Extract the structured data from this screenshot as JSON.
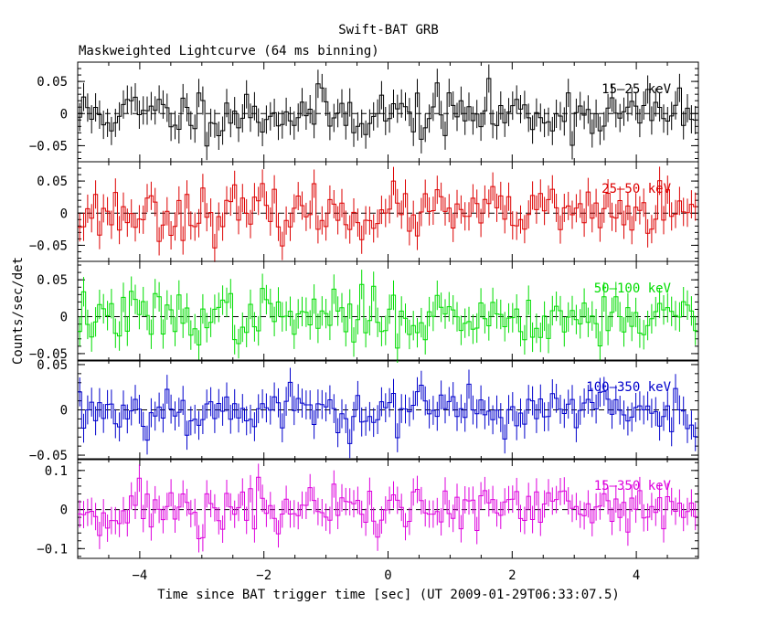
{
  "chart_data": {
    "type": "line",
    "title": "Swift-BAT GRB",
    "subtitle": "Maskweighted Lightcurve (64 ms binning)",
    "xlabel": "Time since BAT trigger time [sec] (UT 2009-01-29T06:33:07.5)",
    "ylabel": "Counts/sec/det",
    "xlim": [
      -5,
      5
    ],
    "x_ticks": [
      -4,
      -2,
      0,
      2,
      4
    ],
    "bin_width_sec": 0.064,
    "panels": [
      {
        "name": "15-25 keV",
        "label": "15–25 keV",
        "color": "#000000",
        "ylim": [
          -0.075,
          0.08
        ],
        "y_ticks": [
          -0.05,
          0,
          0.05
        ],
        "y_tick_labels": [
          "−0.05",
          "0",
          "0.05"
        ],
        "noise_amplitude": 0.02,
        "error_bar": 0.022,
        "seed": 11
      },
      {
        "name": "25-50 keV",
        "label": "25–50 keV",
        "color": "#dd0000",
        "ylim": [
          -0.075,
          0.08
        ],
        "y_ticks": [
          -0.05,
          0,
          0.05
        ],
        "y_tick_labels": [
          "−0.05",
          "0",
          "0.05"
        ],
        "noise_amplitude": 0.02,
        "error_bar": 0.022,
        "seed": 23
      },
      {
        "name": "50-100 keV",
        "label": "50–100 keV",
        "color": "#00dd00",
        "ylim": [
          -0.06,
          0.075
        ],
        "y_ticks": [
          -0.05,
          0,
          0.05
        ],
        "y_tick_labels": [
          "−0.05",
          "0",
          "0.05"
        ],
        "noise_amplitude": 0.018,
        "error_bar": 0.02,
        "seed": 37
      },
      {
        "name": "100-350 keV",
        "label": "100–350 keV",
        "color": "#0000cc",
        "ylim": [
          -0.055,
          0.055
        ],
        "y_ticks": [
          -0.05,
          0,
          0.05
        ],
        "y_tick_labels": [
          "−0.05",
          "0",
          "0.05"
        ],
        "noise_amplitude": 0.014,
        "error_bar": 0.016,
        "seed": 53
      },
      {
        "name": "15-350 keV",
        "label": "15–350 keV",
        "color": "#dd00dd",
        "ylim": [
          -0.125,
          0.13
        ],
        "y_ticks": [
          -0.1,
          0,
          0.1
        ],
        "y_tick_labels": [
          "−0.1",
          "0",
          "0.1"
        ],
        "noise_amplitude": 0.035,
        "error_bar": 0.035,
        "seed": 71
      }
    ]
  }
}
